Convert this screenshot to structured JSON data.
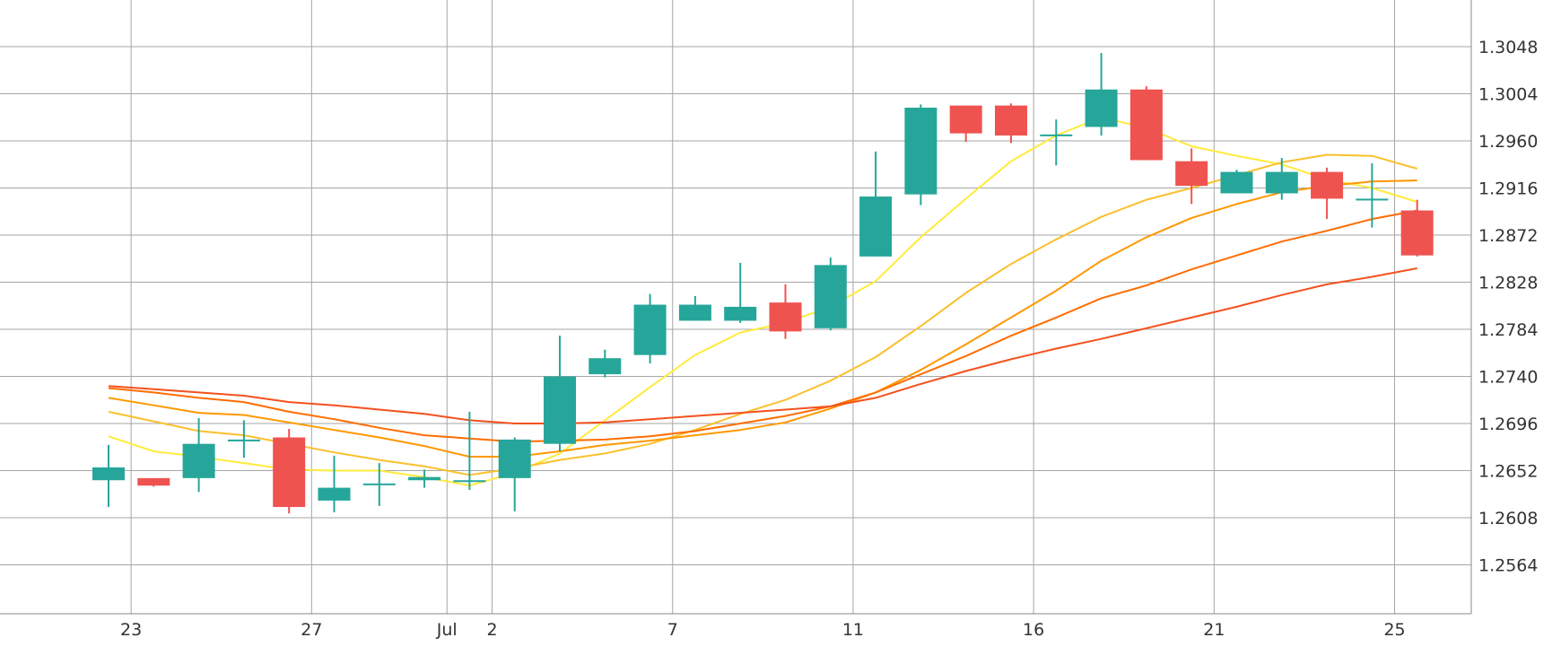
{
  "colors": {
    "up": "#26a69a",
    "down": "#ef5350",
    "grid": "#a6a6a6",
    "axis": "#888888",
    "text": "#333333"
  },
  "chart_data": {
    "type": "candlestick",
    "title": "",
    "xlabel": "",
    "ylabel": "",
    "grid": true,
    "y_axis_position": "right",
    "ylim": [
      1.2542,
      1.3092
    ],
    "x_ticks": [
      {
        "label": "23",
        "t": 0.5
      },
      {
        "label": "27",
        "t": 4.5
      },
      {
        "label": "Jul",
        "t": 7.5
      },
      {
        "label": "2",
        "t": 8.5
      },
      {
        "label": "7",
        "t": 12.5
      },
      {
        "label": "11",
        "t": 16.5
      },
      {
        "label": "16",
        "t": 20.5
      },
      {
        "label": "21",
        "t": 24.5
      },
      {
        "label": "25",
        "t": 28.5
      }
    ],
    "y_ticks": [
      "1.3048",
      "1.3004",
      "1.2960",
      "1.2916",
      "1.2872",
      "1.2828",
      "1.2784",
      "1.2740",
      "1.2696",
      "1.2652",
      "1.2608",
      "1.2564"
    ],
    "candles": [
      {
        "o": 1.2643,
        "h": 1.2676,
        "l": 1.2618,
        "c": 1.2655
      },
      {
        "o": 1.2645,
        "h": 1.2645,
        "l": 1.2637,
        "c": 1.2638
      },
      {
        "o": 1.2645,
        "h": 1.2701,
        "l": 1.2632,
        "c": 1.2677
      },
      {
        "o": 1.2681,
        "h": 1.2699,
        "l": 1.2664,
        "c": 1.2681
      },
      {
        "o": 1.2683,
        "h": 1.2691,
        "l": 1.2612,
        "c": 1.2618
      },
      {
        "o": 1.2624,
        "h": 1.2666,
        "l": 1.2613,
        "c": 1.2636
      },
      {
        "o": 1.2639,
        "h": 1.2659,
        "l": 1.2619,
        "c": 1.264
      },
      {
        "o": 1.2643,
        "h": 1.2653,
        "l": 1.2636,
        "c": 1.2646
      },
      {
        "o": 1.2643,
        "h": 1.2707,
        "l": 1.2634,
        "c": 1.2643
      },
      {
        "o": 1.2645,
        "h": 1.2683,
        "l": 1.2614,
        "c": 1.2681
      },
      {
        "o": 1.2677,
        "h": 1.2778,
        "l": 1.267,
        "c": 1.274
      },
      {
        "o": 1.2742,
        "h": 1.2765,
        "l": 1.2739,
        "c": 1.2757
      },
      {
        "o": 1.276,
        "h": 1.2817,
        "l": 1.2752,
        "c": 1.2807
      },
      {
        "o": 1.2792,
        "h": 1.2815,
        "l": 1.2792,
        "c": 1.2807
      },
      {
        "o": 1.2792,
        "h": 1.2846,
        "l": 1.279,
        "c": 1.2805
      },
      {
        "o": 1.2809,
        "h": 1.2826,
        "l": 1.2775,
        "c": 1.2782
      },
      {
        "o": 1.2785,
        "h": 1.2851,
        "l": 1.2783,
        "c": 1.2844
      },
      {
        "o": 1.2852,
        "h": 1.295,
        "l": 1.2852,
        "c": 1.2908
      },
      {
        "o": 1.291,
        "h": 1.2994,
        "l": 1.29,
        "c": 1.2991
      },
      {
        "o": 1.2993,
        "h": 1.2993,
        "l": 1.2959,
        "c": 1.2967
      },
      {
        "o": 1.2993,
        "h": 1.2995,
        "l": 1.2958,
        "c": 1.2965
      },
      {
        "o": 1.2966,
        "h": 1.298,
        "l": 1.2937,
        "c": 1.2966
      },
      {
        "o": 1.2973,
        "h": 1.3042,
        "l": 1.2965,
        "c": 1.3008
      },
      {
        "o": 1.3008,
        "h": 1.3011,
        "l": 1.2942,
        "c": 1.2942
      },
      {
        "o": 1.2941,
        "h": 1.2953,
        "l": 1.2901,
        "c": 1.2918
      },
      {
        "o": 1.2911,
        "h": 1.2933,
        "l": 1.2911,
        "c": 1.2931
      },
      {
        "o": 1.2911,
        "h": 1.2944,
        "l": 1.2905,
        "c": 1.2931
      },
      {
        "o": 1.2931,
        "h": 1.2935,
        "l": 1.2887,
        "c": 1.2906
      },
      {
        "o": 1.2906,
        "h": 1.2939,
        "l": 1.2879,
        "c": 1.2906
      },
      {
        "o": 1.2895,
        "h": 1.2905,
        "l": 1.2852,
        "c": 1.2853
      }
    ],
    "series": [
      {
        "color": "#ffeb3b",
        "values": [
          [
            0,
            1.2684
          ],
          [
            1,
            1.267
          ],
          [
            2,
            1.2665
          ],
          [
            3,
            1.2659
          ],
          [
            4,
            1.2653
          ],
          [
            5,
            1.2652
          ],
          [
            6,
            1.2652
          ],
          [
            7,
            1.2646
          ],
          [
            8,
            1.2638
          ],
          [
            9,
            1.265
          ],
          [
            10,
            1.2668
          ],
          [
            11,
            1.2699
          ],
          [
            12,
            1.273
          ],
          [
            13,
            1.276
          ],
          [
            14,
            1.2781
          ],
          [
            15,
            1.279
          ],
          [
            16,
            1.2805
          ],
          [
            17,
            1.2829
          ],
          [
            18,
            1.287
          ],
          [
            19,
            1.2906
          ],
          [
            20,
            1.2941
          ],
          [
            21,
            1.2965
          ],
          [
            22,
            1.2982
          ],
          [
            23,
            1.2972
          ],
          [
            24,
            1.2955
          ],
          [
            25,
            1.2946
          ],
          [
            26,
            1.2938
          ],
          [
            27,
            1.2924
          ],
          [
            28,
            1.2916
          ],
          [
            29,
            1.2903
          ]
        ]
      },
      {
        "color": "#fbc02d",
        "values": [
          [
            0,
            1.2707
          ],
          [
            1,
            1.2698
          ],
          [
            2,
            1.2689
          ],
          [
            3,
            1.2685
          ],
          [
            4,
            1.2677
          ],
          [
            5,
            1.2669
          ],
          [
            6,
            1.2662
          ],
          [
            7,
            1.2656
          ],
          [
            8,
            1.2648
          ],
          [
            9,
            1.2654
          ],
          [
            10,
            1.2662
          ],
          [
            11,
            1.2668
          ],
          [
            12,
            1.2677
          ],
          [
            13,
            1.269
          ],
          [
            14,
            1.2705
          ],
          [
            15,
            1.2718
          ],
          [
            16,
            1.2736
          ],
          [
            17,
            1.2758
          ],
          [
            18,
            1.2787
          ],
          [
            19,
            1.2818
          ],
          [
            20,
            1.2845
          ],
          [
            21,
            1.2868
          ],
          [
            22,
            1.2889
          ],
          [
            23,
            1.2905
          ],
          [
            24,
            1.2916
          ],
          [
            25,
            1.2928
          ],
          [
            26,
            1.294
          ],
          [
            27,
            1.2947
          ],
          [
            28,
            1.2946
          ],
          [
            29,
            1.2934
          ]
        ]
      },
      {
        "color": "#ff9800",
        "values": [
          [
            0,
            1.272
          ],
          [
            1,
            1.2713
          ],
          [
            2,
            1.2706
          ],
          [
            3,
            1.2704
          ],
          [
            4,
            1.2697
          ],
          [
            5,
            1.269
          ],
          [
            6,
            1.2683
          ],
          [
            7,
            1.2675
          ],
          [
            8,
            1.2665
          ],
          [
            9,
            1.2665
          ],
          [
            10,
            1.267
          ],
          [
            11,
            1.2676
          ],
          [
            12,
            1.268
          ],
          [
            13,
            1.2685
          ],
          [
            14,
            1.269
          ],
          [
            15,
            1.2697
          ],
          [
            16,
            1.271
          ],
          [
            17,
            1.2725
          ],
          [
            18,
            1.2746
          ],
          [
            19,
            1.277
          ],
          [
            20,
            1.2795
          ],
          [
            21,
            1.282
          ],
          [
            22,
            1.2848
          ],
          [
            23,
            1.287
          ],
          [
            24,
            1.2888
          ],
          [
            25,
            1.2901
          ],
          [
            26,
            1.2912
          ],
          [
            27,
            1.2918
          ],
          [
            28,
            1.2922
          ],
          [
            29,
            1.2923
          ]
        ]
      },
      {
        "color": "#ff6d00",
        "values": [
          [
            0,
            1.2729
          ],
          [
            1,
            1.2725
          ],
          [
            2,
            1.272
          ],
          [
            3,
            1.2716
          ],
          [
            4,
            1.2707
          ],
          [
            5,
            1.27
          ],
          [
            6,
            1.2692
          ],
          [
            7,
            1.2685
          ],
          [
            8,
            1.2682
          ],
          [
            9,
            1.2679
          ],
          [
            10,
            1.268
          ],
          [
            11,
            1.2681
          ],
          [
            12,
            1.2684
          ],
          [
            13,
            1.2689
          ],
          [
            14,
            1.2696
          ],
          [
            15,
            1.2703
          ],
          [
            16,
            1.2712
          ],
          [
            17,
            1.2725
          ],
          [
            18,
            1.2742
          ],
          [
            19,
            1.2759
          ],
          [
            20,
            1.2778
          ],
          [
            21,
            1.2795
          ],
          [
            22,
            1.2813
          ],
          [
            23,
            1.2825
          ],
          [
            24,
            1.284
          ],
          [
            25,
            1.2853
          ],
          [
            26,
            1.2866
          ],
          [
            27,
            1.2876
          ],
          [
            28,
            1.2887
          ],
          [
            29,
            1.2895
          ]
        ]
      },
      {
        "color": "#f4511e",
        "values": [
          [
            0,
            1.2731
          ],
          [
            1,
            1.2728
          ],
          [
            2,
            1.2725
          ],
          [
            3,
            1.2722
          ],
          [
            4,
            1.2716
          ],
          [
            5,
            1.2713
          ],
          [
            6,
            1.2709
          ],
          [
            7,
            1.2705
          ],
          [
            8,
            1.2699
          ],
          [
            9,
            1.2696
          ],
          [
            10,
            1.2696
          ],
          [
            11,
            1.2697
          ],
          [
            12,
            1.27
          ],
          [
            13,
            1.2703
          ],
          [
            14,
            1.2706
          ],
          [
            15,
            1.2709
          ],
          [
            16,
            1.2712
          ],
          [
            17,
            1.272
          ],
          [
            18,
            1.2733
          ],
          [
            19,
            1.2745
          ],
          [
            20,
            1.2756
          ],
          [
            21,
            1.2766
          ],
          [
            22,
            1.2775
          ],
          [
            23,
            1.2785
          ],
          [
            24,
            1.2795
          ],
          [
            25,
            1.2805
          ],
          [
            26,
            1.2816
          ],
          [
            27,
            1.2826
          ],
          [
            28,
            1.2833
          ],
          [
            29,
            1.2841
          ]
        ]
      }
    ]
  }
}
